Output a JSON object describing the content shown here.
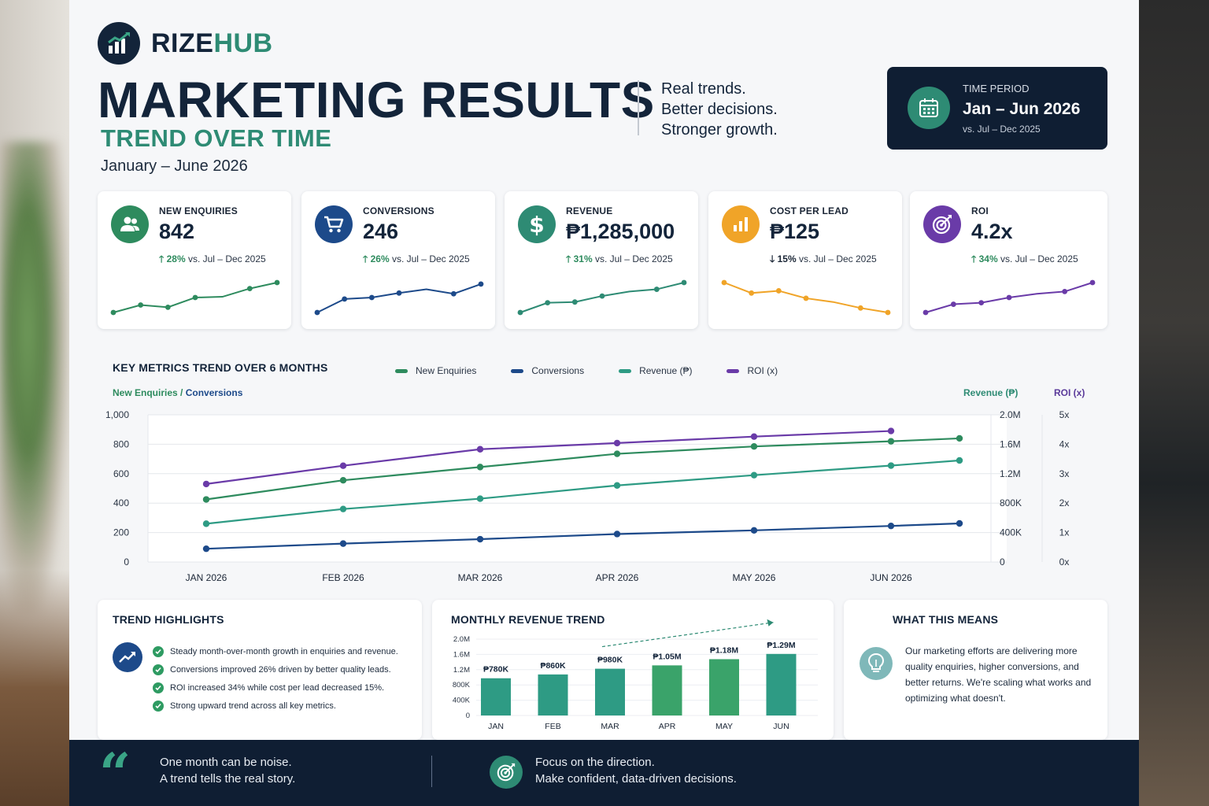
{
  "brand": {
    "name_part1": "RIZE",
    "name_part2": "HUB"
  },
  "header": {
    "title": "MARKETING RESULTS",
    "subtitle": "TREND OVER TIME",
    "date_range": "January – June 2026",
    "tagline": [
      "Real trends.",
      "Better decisions.",
      "Stronger growth."
    ]
  },
  "period": {
    "label": "TIME PERIOD",
    "value": "Jan – Jun 2026",
    "compare": "vs. Jul – Dec 2025"
  },
  "kpis": [
    {
      "label": "NEW ENQUIRIES",
      "value": "842",
      "pct": "28%",
      "compare": "vs. Jul – Dec 2025",
      "direction": "up",
      "color": "#2e8b5e",
      "icon": "users-icon",
      "spark": [
        1.0,
        2.0,
        1.7,
        3.0,
        3.1,
        4.2,
        5.0
      ]
    },
    {
      "label": "CONVERSIONS",
      "value": "246",
      "pct": "26%",
      "compare": "vs. Jul – Dec 2025",
      "direction": "up",
      "color": "#1d4a8a",
      "icon": "cart-icon",
      "spark": [
        1.0,
        2.8,
        3.0,
        3.6,
        4.1,
        3.5,
        4.8
      ]
    },
    {
      "label": "REVENUE",
      "value": "₱1,285,000",
      "pct": "31%",
      "compare": "vs. Jul – Dec 2025",
      "direction": "up",
      "color": "#2e8b74",
      "icon": "dollar-icon",
      "spark": [
        1.0,
        2.3,
        2.4,
        3.2,
        3.8,
        4.1,
        5.0
      ]
    },
    {
      "label": "COST PER LEAD",
      "value": "₱125",
      "pct": "15%",
      "compare": "vs. Jul – Dec 2025",
      "direction": "down",
      "color": "#f0a428",
      "icon": "bar-chart-icon",
      "spark": [
        5.0,
        3.6,
        3.9,
        2.9,
        2.4,
        1.6,
        1.0
      ]
    },
    {
      "label": "ROI",
      "value": "4.2x",
      "pct": "34%",
      "compare": "vs. Jul – Dec 2025",
      "direction": "up",
      "color": "#6a3ba8",
      "icon": "target-icon",
      "spark": [
        1.0,
        2.1,
        2.3,
        3.0,
        3.5,
        3.8,
        5.0
      ]
    }
  ],
  "trend_chart": {
    "title": "KEY METRICS TREND OVER 6 MONTHS",
    "axis_left_part1": "New Enquiries",
    "axis_left_sep": " / ",
    "axis_left_part2": "Conversions",
    "axis_revenue": "Revenue (₱)",
    "axis_roi": "ROI (x)"
  },
  "chart_data": [
    {
      "type": "line",
      "categories": [
        "JAN 2026",
        "FEB 2026",
        "MAR 2026",
        "APR 2026",
        "MAY 2026",
        "JUN 2026"
      ],
      "left_ticks": [
        "0",
        "200",
        "400",
        "600",
        "800",
        "1,000"
      ],
      "revenue_ticks": [
        "0",
        "400K",
        "800K",
        "1.2M",
        "1.6M",
        "2.0M"
      ],
      "roi_ticks": [
        "0x",
        "1x",
        "2x",
        "3x",
        "4x",
        "5x"
      ],
      "ylim_left": [
        0,
        1000
      ],
      "ylim_revenue": [
        0,
        2000000
      ],
      "ylim_roi": [
        0,
        5
      ],
      "legend_placement": "top",
      "series": [
        {
          "name": "New Enquiries",
          "axis": "left",
          "color": "#2e8b5e",
          "x": [
            0,
            1,
            2,
            3,
            4,
            5,
            5.5
          ],
          "values": [
            425,
            555,
            645,
            735,
            785,
            820,
            840
          ]
        },
        {
          "name": "Conversions",
          "axis": "left",
          "color": "#1d4a8a",
          "x": [
            0,
            1,
            2,
            3,
            4,
            5,
            5.5
          ],
          "values": [
            90,
            125,
            155,
            190,
            215,
            245,
            262
          ]
        },
        {
          "name": "Revenue (₱)",
          "axis": "revenue",
          "color": "#2e9b84",
          "x": [
            0,
            1,
            2,
            3,
            4,
            5,
            5.5
          ],
          "values": [
            520000,
            720000,
            860000,
            1040000,
            1180000,
            1310000,
            1380000
          ]
        },
        {
          "name": "ROI (x)",
          "axis": "roi",
          "color": "#6a3ba8",
          "x": [
            0,
            1,
            2,
            3,
            4,
            5
          ],
          "values": [
            2.65,
            3.27,
            3.83,
            4.04,
            4.26,
            4.45
          ]
        }
      ]
    },
    {
      "type": "bar",
      "title": "MONTHLY REVENUE TREND",
      "categories": [
        "JAN",
        "FEB",
        "MAR",
        "APR",
        "MAY",
        "JUN"
      ],
      "values": [
        780000,
        860000,
        980000,
        1050000,
        1180000,
        1290000
      ],
      "labels": [
        "₱780K",
        "₱860K",
        "₱980K",
        "₱1.05M",
        "₱1.18M",
        "₱1.29M"
      ],
      "ticks": [
        "0",
        "400K",
        "800K",
        "1.2M",
        "1.6M",
        "2.0M"
      ],
      "ylim": [
        0,
        2000000
      ],
      "colors": [
        "#2e9b84",
        "#2e9b84",
        "#2e9b84",
        "#3aa36a",
        "#3aa36a",
        "#2e9b84"
      ]
    }
  ],
  "highlights": {
    "title": "TREND HIGHLIGHTS",
    "items": [
      "Steady month-over-month growth in enquiries and revenue.",
      "Conversions improved 26% driven by better quality leads.",
      "ROI increased 34% while cost per lead decreased 15%.",
      "Strong upward trend across all key metrics."
    ]
  },
  "what_this_means": {
    "title": "WHAT THIS MEANS",
    "text": "Our marketing efforts are delivering more quality enquiries, higher conversions, and better returns. We're scaling what works and optimizing what doesn't."
  },
  "footer": {
    "quote_line1": "One month can be noise.",
    "quote_line2": "A trend tells the real story.",
    "focus_line1": "Focus on the direction.",
    "focus_line2": "Make confident, data-driven decisions."
  }
}
